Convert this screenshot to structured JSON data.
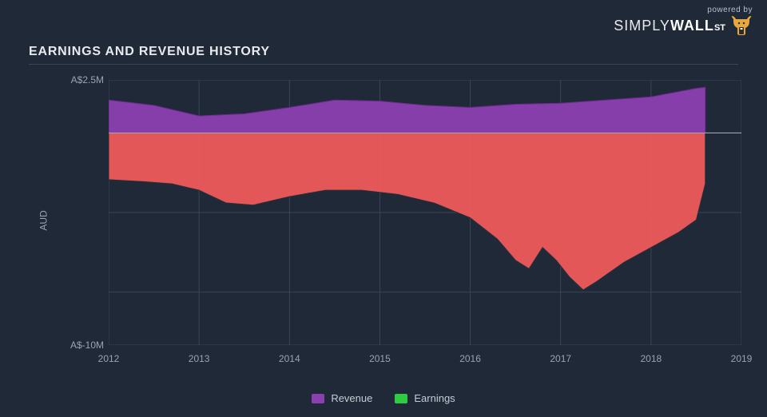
{
  "logo": {
    "powered_by": "powered by",
    "line1_simply": "SIMPLY",
    "line1_wall": "WALL",
    "line1_st": "ST"
  },
  "title": "EARNINGS AND REVENUE HISTORY",
  "chart": {
    "type": "area",
    "y_axis_label": "AUD",
    "y_ticks": [
      {
        "value": 2.5,
        "label": "A$2.5M"
      },
      {
        "value": -10,
        "label": "A$-10M"
      }
    ],
    "y_min": -10,
    "y_max": 2.5,
    "y_zero": 0,
    "x_ticks": [
      2012,
      2013,
      2014,
      2015,
      2016,
      2017,
      2018,
      2019
    ],
    "x_min": 2012,
    "x_max": 2019,
    "background_color": "#1f2937",
    "grid_color": "#3a4656",
    "zero_line_color": "#aeb6c2",
    "label_color": "#9aa3b1",
    "series": [
      {
        "name": "Revenue",
        "legend_label": "Revenue",
        "fill_color": "#8b3fb0",
        "fill_opacity": 0.95,
        "stroke_color": "#6d2a8e",
        "baseline": 0,
        "points": [
          {
            "x": 2012.0,
            "y": 1.55
          },
          {
            "x": 2012.5,
            "y": 1.3
          },
          {
            "x": 2013.0,
            "y": 0.8
          },
          {
            "x": 2013.5,
            "y": 0.9
          },
          {
            "x": 2014.0,
            "y": 1.2
          },
          {
            "x": 2014.5,
            "y": 1.55
          },
          {
            "x": 2015.0,
            "y": 1.5
          },
          {
            "x": 2015.5,
            "y": 1.3
          },
          {
            "x": 2016.0,
            "y": 1.2
          },
          {
            "x": 2016.5,
            "y": 1.35
          },
          {
            "x": 2017.0,
            "y": 1.4
          },
          {
            "x": 2017.5,
            "y": 1.55
          },
          {
            "x": 2018.0,
            "y": 1.7
          },
          {
            "x": 2018.5,
            "y": 2.1
          },
          {
            "x": 2018.6,
            "y": 2.15
          }
        ]
      },
      {
        "name": "Earnings",
        "legend_label": "Earnings",
        "fill_color": "#ef5a5a",
        "fill_opacity": 0.95,
        "stroke_color": "#2a2f3a",
        "baseline": 0,
        "points": [
          {
            "x": 2012.0,
            "y": -2.2
          },
          {
            "x": 2012.4,
            "y": -2.3
          },
          {
            "x": 2012.7,
            "y": -2.4
          },
          {
            "x": 2013.0,
            "y": -2.7
          },
          {
            "x": 2013.3,
            "y": -3.3
          },
          {
            "x": 2013.6,
            "y": -3.4
          },
          {
            "x": 2014.0,
            "y": -3.0
          },
          {
            "x": 2014.4,
            "y": -2.7
          },
          {
            "x": 2014.8,
            "y": -2.7
          },
          {
            "x": 2015.2,
            "y": -2.9
          },
          {
            "x": 2015.6,
            "y": -3.3
          },
          {
            "x": 2016.0,
            "y": -4.0
          },
          {
            "x": 2016.3,
            "y": -5.0
          },
          {
            "x": 2016.5,
            "y": -6.0
          },
          {
            "x": 2016.65,
            "y": -6.4
          },
          {
            "x": 2016.8,
            "y": -5.4
          },
          {
            "x": 2016.95,
            "y": -6.0
          },
          {
            "x": 2017.1,
            "y": -6.8
          },
          {
            "x": 2017.25,
            "y": -7.4
          },
          {
            "x": 2017.4,
            "y": -7.0
          },
          {
            "x": 2017.7,
            "y": -6.1
          },
          {
            "x": 2018.0,
            "y": -5.4
          },
          {
            "x": 2018.3,
            "y": -4.7
          },
          {
            "x": 2018.5,
            "y": -4.1
          },
          {
            "x": 2018.6,
            "y": -2.4
          }
        ]
      }
    ],
    "legend_earnings_swatch": "#2ecc40"
  }
}
